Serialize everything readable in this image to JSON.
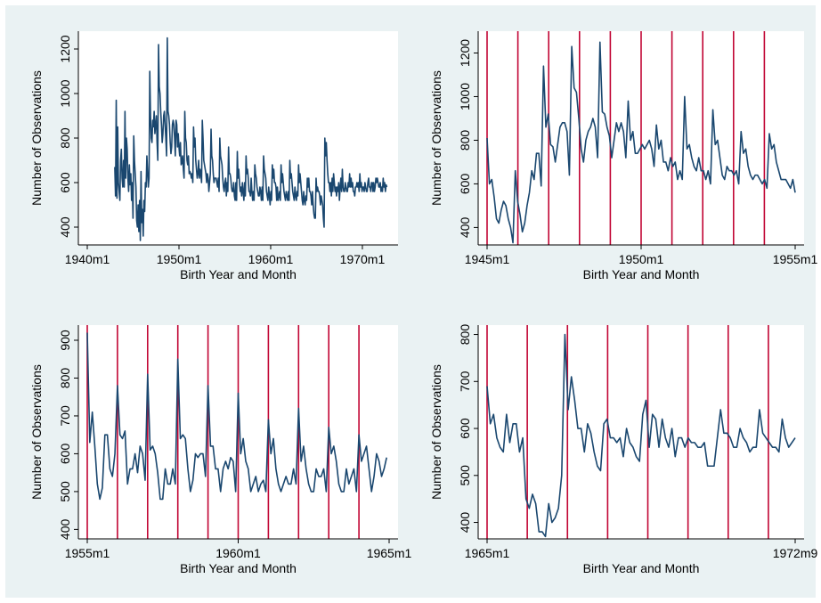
{
  "colors": {
    "outer_background": "#eaf2f3",
    "plot_background": "#ffffff",
    "series_line": "#1a476f",
    "year_markers": "#c10534",
    "axis": "#000000"
  },
  "chart_data": [
    {
      "type": "line",
      "panel": "top-left",
      "xlabel": "Birth Year and Month",
      "ylabel": "Number of Observations",
      "x_range": [
        "1940m1",
        "1972m12"
      ],
      "ylim": [
        320,
        1280
      ],
      "x_ticks": [
        "1940m1",
        "1950m1",
        "1960m1",
        "1970m1"
      ],
      "y_ticks": [
        400,
        600,
        800,
        1000,
        1200
      ],
      "year_markers": [],
      "series_x_range": [
        "1943m1",
        "1972m9"
      ],
      "series_values": [
        670,
        540,
        970,
        530,
        850,
        600,
        560,
        520,
        700,
        750,
        620,
        580,
        700,
        580,
        920,
        620,
        800,
        750,
        620,
        560,
        680,
        590,
        640,
        520,
        600,
        440,
        810,
        700,
        640,
        580,
        430,
        400,
        500,
        380,
        520,
        340,
        650,
        420,
        480,
        360,
        520,
        470,
        600,
        580,
        720,
        650,
        580,
        620,
        1100,
        900,
        800,
        780,
        880,
        850,
        920,
        820,
        860,
        900,
        780,
        700,
        1220,
        1030,
        1000,
        920,
        860,
        780,
        820,
        900,
        920,
        860,
        800,
        720,
        1250,
        920,
        900,
        860,
        780,
        730,
        760,
        860,
        880,
        860,
        800,
        720,
        880,
        860,
        760,
        820,
        760,
        720,
        780,
        680,
        690,
        720,
        660,
        620,
        920,
        800,
        780,
        700,
        680,
        720,
        640,
        650,
        640,
        620,
        640,
        600,
        850,
        760,
        800,
        700,
        660,
        620,
        640,
        700,
        620,
        660,
        640,
        600,
        880,
        800,
        700,
        680,
        660,
        640,
        600,
        640,
        620,
        560,
        600,
        640,
        840,
        720,
        700,
        640,
        600,
        620,
        620,
        620,
        600,
        580,
        620,
        560,
        800,
        720,
        700,
        680,
        620,
        580,
        560,
        600,
        620,
        540,
        600,
        560,
        760,
        640,
        640,
        620,
        580,
        560,
        560,
        600,
        540,
        520,
        600,
        520,
        740,
        620,
        660,
        600,
        560,
        580,
        540,
        600,
        560,
        520,
        600,
        540,
        720,
        640,
        660,
        620,
        560,
        560,
        540,
        620,
        560,
        520,
        560,
        520,
        680,
        640,
        620,
        580,
        560,
        540,
        540,
        580,
        560,
        520,
        580,
        520,
        720,
        660,
        640,
        620,
        560,
        540,
        520,
        580,
        540,
        500,
        560,
        520,
        680,
        620,
        660,
        600,
        600,
        580,
        520,
        580,
        520,
        540,
        560,
        520,
        680,
        600,
        640,
        600,
        560,
        540,
        520,
        560,
        540,
        520,
        560,
        520,
        700,
        620,
        640,
        600,
        560,
        540,
        520,
        580,
        540,
        520,
        560,
        540,
        680,
        600,
        640,
        600,
        560,
        520,
        500,
        560,
        520,
        500,
        540,
        520,
        620,
        580,
        620,
        560,
        560,
        540,
        500,
        560,
        500,
        460,
        440,
        440,
        620,
        560,
        580,
        560,
        560,
        540,
        500,
        540,
        520,
        500,
        440,
        400,
        800,
        720,
        780,
        700,
        640,
        600,
        600,
        560,
        600,
        540,
        620,
        560,
        640,
        600,
        560,
        580,
        540,
        580,
        560,
        600,
        520,
        580,
        620,
        560,
        660,
        580,
        560,
        560,
        600,
        580,
        560,
        560,
        600,
        580,
        640,
        580,
        620,
        580,
        600,
        560,
        560,
        540,
        580,
        580,
        600,
        580,
        600,
        560,
        640,
        580,
        600,
        560,
        580,
        580,
        560,
        600,
        580,
        560,
        560,
        600,
        620,
        580,
        580,
        560,
        600,
        600,
        560,
        600,
        560,
        580,
        620,
        600,
        620,
        600,
        580,
        580,
        600,
        560,
        580,
        560,
        620,
        580,
        600,
        560,
        590,
        580
      ]
    },
    {
      "type": "line",
      "panel": "top-right",
      "xlabel": "Birth Year and Month",
      "ylabel": "Number of Observations",
      "x_range": [
        "1945m1",
        "1955m1"
      ],
      "ylim": [
        320,
        1300
      ],
      "x_ticks": [
        "1945m1",
        "1950m1",
        "1955m1"
      ],
      "y_ticks": [
        400,
        600,
        800,
        1000,
        1200
      ],
      "year_markers": [
        "1945m1",
        "1946m1",
        "1947m1",
        "1948m1",
        "1949m1",
        "1950m1",
        "1951m1",
        "1952m1",
        "1953m1",
        "1954m1"
      ],
      "series_x_range": [
        "1945m1",
        "1955m1"
      ],
      "series_values": [
        810,
        600,
        620,
        540,
        440,
        420,
        480,
        520,
        500,
        440,
        400,
        330,
        660,
        520,
        460,
        380,
        420,
        500,
        560,
        660,
        620,
        740,
        740,
        590,
        1140,
        860,
        920,
        780,
        770,
        700,
        780,
        860,
        880,
        880,
        840,
        640,
        1230,
        1040,
        1020,
        900,
        760,
        700,
        800,
        840,
        860,
        900,
        860,
        720,
        1250,
        930,
        920,
        860,
        820,
        720,
        800,
        880,
        840,
        880,
        840,
        720,
        980,
        800,
        840,
        740,
        740,
        760,
        780,
        760,
        780,
        800,
        760,
        680,
        870,
        760,
        800,
        700,
        700,
        660,
        720,
        680,
        700,
        620,
        660,
        620,
        1000,
        760,
        780,
        720,
        680,
        660,
        720,
        660,
        660,
        620,
        660,
        600,
        940,
        780,
        800,
        720,
        640,
        620,
        680,
        660,
        660,
        640,
        660,
        600,
        840,
        740,
        760,
        680,
        640,
        620,
        640,
        640,
        620,
        600,
        620,
        580,
        830,
        760,
        780,
        700,
        660,
        620,
        620,
        620,
        600,
        580,
        620,
        560
      ]
    },
    {
      "type": "line",
      "panel": "bottom-left",
      "xlabel": "Birth Year and Month",
      "ylabel": "Number of Observations",
      "x_range": [
        "1955m1",
        "1965m1"
      ],
      "ylim": [
        375,
        940
      ],
      "x_ticks": [
        "1955m1",
        "1960m1",
        "1965m1"
      ],
      "y_ticks": [
        400,
        500,
        600,
        700,
        800,
        900
      ],
      "year_markers": [
        "1955m1",
        "1956m1",
        "1957m1",
        "1958m1",
        "1959m1",
        "1960m1",
        "1961m1",
        "1962m1",
        "1963m1",
        "1964m1"
      ],
      "series_x_range": [
        "1955m1",
        "1964m12"
      ],
      "series_values": [
        920,
        630,
        710,
        620,
        520,
        480,
        510,
        650,
        650,
        560,
        540,
        600,
        780,
        650,
        640,
        660,
        520,
        560,
        560,
        600,
        550,
        620,
        600,
        530,
        810,
        610,
        620,
        600,
        550,
        480,
        480,
        560,
        520,
        520,
        560,
        520,
        850,
        640,
        650,
        640,
        560,
        500,
        530,
        600,
        590,
        600,
        600,
        540,
        780,
        620,
        620,
        560,
        560,
        500,
        560,
        580,
        560,
        590,
        580,
        500,
        760,
        600,
        640,
        580,
        560,
        500,
        520,
        540,
        500,
        520,
        530,
        500,
        690,
        600,
        640,
        560,
        520,
        500,
        520,
        540,
        520,
        520,
        560,
        520,
        720,
        580,
        620,
        560,
        520,
        500,
        500,
        560,
        540,
        540,
        560,
        500,
        670,
        600,
        620,
        580,
        520,
        500,
        500,
        560,
        520,
        540,
        560,
        500,
        650,
        580,
        600,
        620,
        560,
        500,
        540,
        600,
        580,
        540,
        560,
        590
      ]
    },
    {
      "type": "line",
      "panel": "bottom-right",
      "xlabel": "Birth Year and Month",
      "ylabel": "Number of Observations",
      "x_range": [
        "1965m1",
        "1972m9"
      ],
      "ylim": [
        365,
        820
      ],
      "x_ticks": [
        "1965m1",
        "1972m9"
      ],
      "y_ticks": [
        400,
        500,
        600,
        700,
        800
      ],
      "year_markers": [
        "1965m1",
        "1966m1",
        "1967m1",
        "1968m1",
        "1969m1",
        "1970m1",
        "1971m1",
        "1972m1"
      ],
      "series_x_range": [
        "1965m1",
        "1972m9"
      ],
      "series_values": [
        690,
        610,
        630,
        580,
        560,
        550,
        630,
        570,
        610,
        610,
        550,
        580,
        450,
        430,
        460,
        440,
        380,
        380,
        370,
        440,
        400,
        410,
        430,
        500,
        800,
        640,
        710,
        660,
        600,
        600,
        550,
        610,
        590,
        550,
        520,
        510,
        610,
        620,
        580,
        580,
        570,
        580,
        540,
        600,
        570,
        560,
        540,
        530,
        630,
        660,
        560,
        630,
        620,
        560,
        620,
        580,
        560,
        600,
        540,
        580,
        580,
        560,
        580,
        570,
        570,
        560,
        560,
        570,
        520,
        520,
        520,
        580,
        640,
        590,
        590,
        580,
        560,
        560,
        600,
        580,
        570,
        550,
        560,
        560,
        640,
        590,
        580,
        570,
        560,
        560,
        550,
        620,
        580,
        560,
        570,
        580
      ]
    }
  ]
}
